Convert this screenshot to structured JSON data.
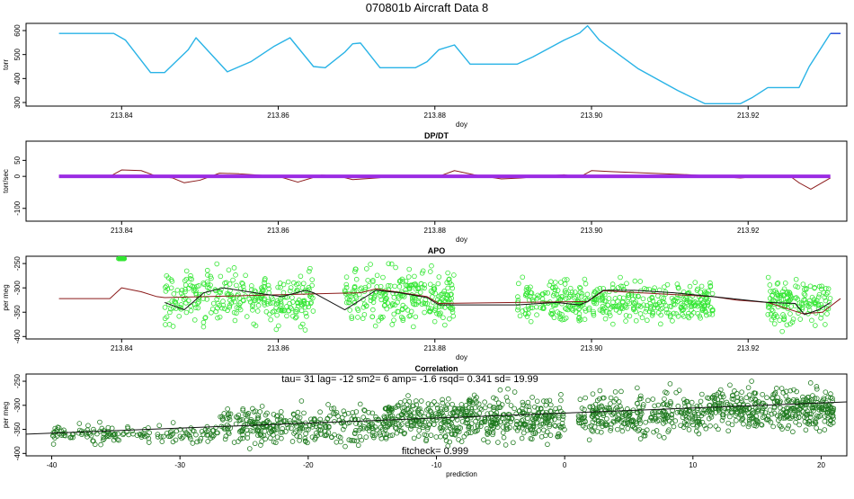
{
  "title": "070801b   Aircraft Data 8",
  "chart_data": [
    {
      "id": "pressure",
      "type": "line",
      "title": "",
      "xlabel": "doy",
      "ylabel": "torr",
      "xlim": [
        213.8278,
        213.9326
      ],
      "ylim": [
        285,
        630
      ],
      "xticks": [
        213.84,
        213.86,
        213.88,
        213.9,
        213.92
      ],
      "xtick_labels": [
        "213.84",
        "213.86",
        "213.88",
        "213.90",
        "213.92"
      ],
      "yticks": [
        300,
        400,
        500,
        600
      ],
      "ytick_labels": [
        "300",
        "400",
        "500",
        "600"
      ],
      "series": [
        {
          "color": "#29b3e6",
          "x": [
            213.832,
            213.839,
            213.8405,
            213.8437,
            213.8455,
            213.8485,
            213.8495,
            213.8535,
            213.8565,
            213.8595,
            213.8615,
            213.8645,
            213.866,
            213.8685,
            213.8695,
            213.8705,
            213.873,
            213.8775,
            213.879,
            213.8805,
            213.8825,
            213.8845,
            213.8905,
            213.8925,
            213.8965,
            213.8985,
            213.8995,
            213.901,
            213.906,
            213.911,
            213.9145,
            213.919,
            213.9205,
            213.9225,
            213.9265,
            213.9278,
            213.9305
          ],
          "y": [
            588,
            588,
            560,
            425,
            425,
            520,
            570,
            428,
            470,
            535,
            570,
            450,
            445,
            510,
            545,
            548,
            445,
            445,
            470,
            520,
            540,
            460,
            460,
            490,
            560,
            590,
            620,
            560,
            440,
            350,
            295,
            295,
            320,
            362,
            362,
            450,
            588
          ]
        },
        {
          "color": "#1a3fd6",
          "x": [
            213.9305,
            213.9318
          ],
          "y": [
            588,
            588
          ]
        }
      ]
    },
    {
      "id": "dpdt",
      "type": "line",
      "title": "DP/DT",
      "xlabel": "doy",
      "ylabel": "torr/sec",
      "xlim": [
        213.8278,
        213.9326
      ],
      "ylim": [
        -140,
        110
      ],
      "xticks": [
        213.84,
        213.86,
        213.88,
        213.9,
        213.92
      ],
      "xtick_labels": [
        "213.84",
        "213.86",
        "213.88",
        "213.90",
        "213.92"
      ],
      "yticks": [
        -100,
        0,
        50
      ],
      "ytick_labels": [
        "-100",
        "0",
        "50"
      ],
      "series": [
        {
          "color": "#8b1a1a",
          "x": [
            213.832,
            213.8385,
            213.84,
            213.8425,
            213.8445,
            213.8465,
            213.848,
            213.85,
            213.8525,
            213.855,
            213.8575,
            213.86,
            213.8625,
            213.8655,
            213.8675,
            213.8695,
            213.8725,
            213.8755,
            213.878,
            213.8805,
            213.8825,
            213.885,
            213.8885,
            213.891,
            213.8935,
            213.8965,
            213.8985,
            213.9,
            213.9025,
            213.9075,
            213.9125,
            213.916,
            213.919,
            213.922,
            213.9255,
            213.9265,
            213.928,
            213.9305
          ],
          "y": [
            0,
            0,
            20,
            18,
            0,
            -5,
            -20,
            -12,
            10,
            8,
            4,
            0,
            -18,
            4,
            2,
            -10,
            -5,
            2,
            -2,
            0,
            18,
            5,
            -8,
            -5,
            0,
            5,
            -2,
            18,
            15,
            10,
            5,
            0,
            -5,
            2,
            -2,
            -20,
            -40,
            -5
          ]
        },
        {
          "color": "#9b2be3",
          "x": [
            213.832,
            213.9305
          ],
          "y": [
            0,
            0
          ]
        }
      ]
    },
    {
      "id": "apo",
      "type": "scatter",
      "title": "APO",
      "xlabel": "doy",
      "ylabel": "per meg",
      "xlim": [
        213.8278,
        213.9326
      ],
      "ylim": [
        -405,
        -235
      ],
      "xticks": [
        213.84,
        213.86,
        213.88,
        213.9,
        213.92
      ],
      "xtick_labels": [
        "213.84",
        "213.86",
        "213.88",
        "213.90",
        "213.92"
      ],
      "yticks": [
        -400,
        -350,
        -300,
        -250
      ],
      "ytick_labels": [
        "-400",
        "-350",
        "-300",
        "-250"
      ],
      "points": {
        "color": "#33e633",
        "segments": [
          {
            "x": [
              213.8395,
              213.8405
            ],
            "y": [
              -240,
              -285
            ],
            "n": 25
          },
          {
            "x": [
              213.8455,
              213.8645
            ],
            "y": [
              -395,
              -245
            ],
            "n": 300
          },
          {
            "x": [
              213.8685,
              213.8825
            ],
            "y": [
              -400,
              -240
            ],
            "n": 260
          },
          {
            "x": [
              213.8905,
              213.9155
            ],
            "y": [
              -385,
              -270
            ],
            "n": 420
          },
          {
            "x": [
              213.9225,
              213.9305
            ],
            "y": [
              -395,
              -265
            ],
            "n": 150
          }
        ]
      },
      "series": [
        {
          "color": "#8b1a1a",
          "x": [
            213.832,
            213.8385,
            213.84,
            213.8425,
            213.8445,
            213.8455,
            213.8705,
            213.8725,
            213.879,
            213.8805,
            213.8905,
            213.8995,
            213.9015,
            213.9155,
            213.9185,
            213.9225,
            213.927,
            213.9295,
            213.9318
          ],
          "y": [
            -322,
            -322,
            -300,
            -308,
            -318,
            -320,
            -310,
            -302,
            -318,
            -332,
            -330,
            -328,
            -306,
            -318,
            -325,
            -330,
            -353,
            -350,
            -322
          ]
        },
        {
          "color": "#111111",
          "x": [
            213.8455,
            213.848,
            213.8505,
            213.853,
            213.857,
            213.8605,
            213.8635,
            213.8645,
            213.8685,
            213.8705,
            213.8725,
            213.8755,
            213.879,
            213.8805,
            213.8825,
            213.8905,
            213.8955,
            213.8985,
            213.8995,
            213.9015,
            213.9055,
            213.9105,
            213.9155,
            213.9225,
            213.926,
            213.9272,
            213.929,
            213.9305
          ],
          "y": [
            -330,
            -345,
            -310,
            -300,
            -310,
            -318,
            -305,
            -310,
            -345,
            -325,
            -305,
            -310,
            -320,
            -335,
            -335,
            -335,
            -330,
            -335,
            -328,
            -305,
            -305,
            -310,
            -318,
            -330,
            -332,
            -355,
            -345,
            -330
          ]
        }
      ]
    },
    {
      "id": "correlation",
      "type": "scatter",
      "title": "Correlation",
      "xlabel": "prediction",
      "ylabel": "per meg",
      "xlim": [
        -42,
        22
      ],
      "ylim": [
        -405,
        -235
      ],
      "xticks": [
        -40,
        -30,
        -20,
        -10,
        0,
        10,
        20
      ],
      "xtick_labels": [
        "-40",
        "-30",
        "-20",
        "-10",
        "0",
        "10",
        "20"
      ],
      "yticks": [
        -400,
        -350,
        -300,
        -250
      ],
      "ytick_labels": [
        "-400",
        "-350",
        "-300",
        "-250"
      ],
      "annotation_top": "tau= 31 lag= -12 sm2= 6 amp= -1.6 rsqd= 0.341 sd= 19.99",
      "annotation_bottom": "fitcheck= 0.999",
      "points": {
        "color": "#1f7a1f",
        "segments": [
          {
            "x": [
              -40,
              -27
            ],
            "y": [
              -385,
              -335
            ],
            "n": 150
          },
          {
            "x": [
              -27,
              -14
            ],
            "y": [
              -395,
              -290
            ],
            "n": 320
          },
          {
            "x": [
              -14,
              0
            ],
            "y": [
              -390,
              -265
            ],
            "n": 520
          },
          {
            "x": [
              1,
              11
            ],
            "y": [
              -385,
              -255
            ],
            "n": 300
          },
          {
            "x": [
              11,
              21
            ],
            "y": [
              -365,
              -250
            ],
            "n": 380
          }
        ]
      },
      "fit_line": {
        "color": "#111111",
        "x": [
          -42,
          22
        ],
        "y": [
          -360,
          -293
        ]
      }
    }
  ]
}
